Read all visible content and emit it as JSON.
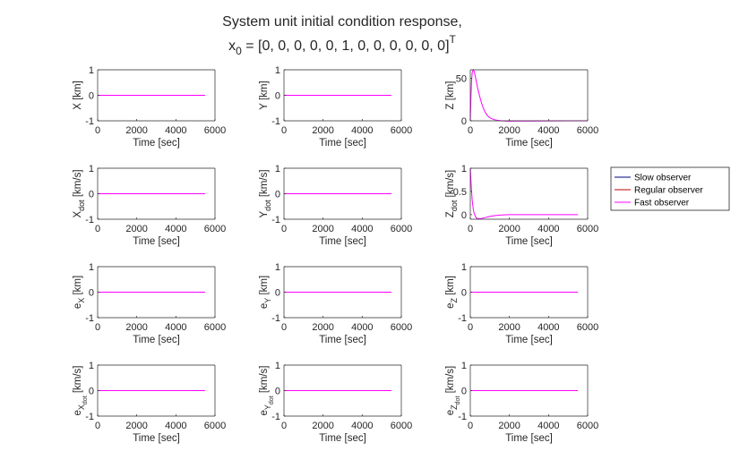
{
  "figure": {
    "title_line1": "System unit initial condition response,",
    "title_line2": "x",
    "title_line2_sub": "0",
    "title_line2_rest": " = [0, 0, 0, 0, 0, 1, 0, 0, 0, 0, 0, 0]",
    "title_line2_sup": "T"
  },
  "legend": {
    "placement": "right",
    "entries": [
      {
        "name": "Slow observer",
        "color": "#00007f"
      },
      {
        "name": "Regular observer",
        "color": "#bf0000"
      },
      {
        "name": "Fast observer",
        "color": "#ff00ff"
      }
    ]
  },
  "chart_data": [
    {
      "type": "line",
      "ylabel_main": "X [km]",
      "ylabel_sub": "",
      "ylabel_tail": "",
      "xlabel": "Time [sec]",
      "xlim": [
        0,
        6000
      ],
      "ylim": [
        -1,
        1
      ],
      "xticks": [
        "0",
        "2000",
        "4000",
        "6000"
      ],
      "yticks": [
        "-1",
        "0",
        "1"
      ],
      "series": [
        {
          "name": "Fast observer",
          "x": [
            0,
            5500
          ],
          "y": [
            0,
            0
          ]
        }
      ]
    },
    {
      "type": "line",
      "ylabel_main": "Y [km]",
      "ylabel_sub": "",
      "ylabel_tail": "",
      "xlabel": "Time [sec]",
      "xlim": [
        0,
        6000
      ],
      "ylim": [
        -1,
        1
      ],
      "xticks": [
        "0",
        "2000",
        "4000",
        "6000"
      ],
      "yticks": [
        "-1",
        "0",
        "1"
      ],
      "series": [
        {
          "name": "Fast observer",
          "x": [
            0,
            5500
          ],
          "y": [
            0,
            0
          ]
        }
      ]
    },
    {
      "type": "line",
      "ylabel_main": "Z [km]",
      "ylabel_sub": "",
      "ylabel_tail": "",
      "xlabel": "Time [sec]",
      "xlim": [
        0,
        6000
      ],
      "ylim": [
        0,
        60
      ],
      "xticks": [
        "0",
        "2000",
        "4000",
        "6000"
      ],
      "yticks": [
        "0",
        "50"
      ],
      "series": [
        {
          "name": "Fast observer",
          "x": [
            0,
            30,
            60,
            100,
            150,
            200,
            250,
            300,
            400,
            500,
            600,
            700,
            800,
            900,
            1000,
            1200,
            1400,
            1600,
            1800,
            2000,
            2500,
            3000,
            4000,
            5000,
            6000
          ],
          "y": [
            0,
            25,
            45,
            57,
            60,
            58,
            53,
            47,
            36,
            27,
            19,
            13,
            8.5,
            5.5,
            3.5,
            1.5,
            0.5,
            0,
            -0.3,
            -0.4,
            -0.3,
            -0.2,
            -0.1,
            0,
            0
          ]
        }
      ]
    },
    {
      "type": "line",
      "ylabel_main": "X",
      "ylabel_sub": "dot",
      "ylabel_tail": " [km/s]",
      "xlabel": "Time [sec]",
      "xlim": [
        0,
        6000
      ],
      "ylim": [
        -1,
        1
      ],
      "xticks": [
        "0",
        "2000",
        "4000",
        "6000"
      ],
      "yticks": [
        "-1",
        "0",
        "1"
      ],
      "series": [
        {
          "name": "Fast observer",
          "x": [
            0,
            5500
          ],
          "y": [
            0,
            0
          ]
        }
      ]
    },
    {
      "type": "line",
      "ylabel_main": "Y",
      "ylabel_sub": "dot",
      "ylabel_tail": " [km/s]",
      "xlabel": "Time [sec]",
      "xlim": [
        0,
        6000
      ],
      "ylim": [
        -1,
        1
      ],
      "xticks": [
        "0",
        "2000",
        "4000",
        "6000"
      ],
      "yticks": [
        "-1",
        "0",
        "1"
      ],
      "series": [
        {
          "name": "Fast observer",
          "x": [
            0,
            5500
          ],
          "y": [
            0,
            0
          ]
        }
      ]
    },
    {
      "type": "line",
      "ylabel_main": "Z",
      "ylabel_sub": "dot",
      "ylabel_tail": " [km/s]",
      "xlabel": "Time [sec]",
      "xlim": [
        0,
        6000
      ],
      "ylim": [
        -0.1,
        1
      ],
      "xticks": [
        "0",
        "2000",
        "4000",
        "6000"
      ],
      "yticks": [
        "0",
        "0.5",
        "1"
      ],
      "series": [
        {
          "name": "Fast observer",
          "x": [
            0,
            50,
            100,
            150,
            200,
            300,
            400,
            500,
            600,
            700,
            800,
            1000,
            1200,
            1500,
            2000,
            2500,
            3000,
            4000,
            5000,
            5500
          ],
          "y": [
            1,
            0.6,
            0.3,
            0.12,
            0.02,
            -0.07,
            -0.09,
            -0.09,
            -0.08,
            -0.07,
            -0.06,
            -0.04,
            -0.025,
            -0.01,
            0,
            0,
            0,
            0,
            0,
            0
          ]
        }
      ]
    },
    {
      "type": "line",
      "ylabel_main": "e",
      "ylabel_sub": "X",
      "ylabel_tail": " [km]",
      "xlabel": "Time [sec]",
      "xlim": [
        0,
        6000
      ],
      "ylim": [
        -1,
        1
      ],
      "xticks": [
        "0",
        "2000",
        "4000",
        "6000"
      ],
      "yticks": [
        "-1",
        "0",
        "1"
      ],
      "series": [
        {
          "name": "Fast observer",
          "x": [
            0,
            5500
          ],
          "y": [
            0,
            0
          ]
        }
      ]
    },
    {
      "type": "line",
      "ylabel_main": "e",
      "ylabel_sub": "Y",
      "ylabel_tail": " [km]",
      "xlabel": "Time [sec]",
      "xlim": [
        0,
        6000
      ],
      "ylim": [
        -1,
        1
      ],
      "xticks": [
        "0",
        "2000",
        "4000",
        "6000"
      ],
      "yticks": [
        "-1",
        "0",
        "1"
      ],
      "series": [
        {
          "name": "Fast observer",
          "x": [
            0,
            5500
          ],
          "y": [
            0,
            0
          ]
        }
      ]
    },
    {
      "type": "line",
      "ylabel_main": "e",
      "ylabel_sub": "Z",
      "ylabel_tail": " [km]",
      "xlabel": "Time [sec]",
      "xlim": [
        0,
        6000
      ],
      "ylim": [
        -1,
        1
      ],
      "xticks": [
        "0",
        "2000",
        "4000",
        "6000"
      ],
      "yticks": [
        "-1",
        "0",
        "1"
      ],
      "series": [
        {
          "name": "Fast observer",
          "x": [
            0,
            5500
          ],
          "y": [
            0,
            0
          ]
        }
      ]
    },
    {
      "type": "line",
      "ylabel_main": "e",
      "ylabel_sub": "X",
      "ylabel_subsub": "dot",
      "ylabel_tail": " [km/s]",
      "xlabel": "Time [sec]",
      "xlim": [
        0,
        6000
      ],
      "ylim": [
        -1,
        1
      ],
      "xticks": [
        "0",
        "2000",
        "4000",
        "6000"
      ],
      "yticks": [
        "-1",
        "0",
        "1"
      ],
      "series": [
        {
          "name": "Fast observer",
          "x": [
            0,
            5500
          ],
          "y": [
            0,
            0
          ]
        }
      ]
    },
    {
      "type": "line",
      "ylabel_main": "e",
      "ylabel_sub": "Y",
      "ylabel_subsub": "dot",
      "ylabel_tail": " [km/s]",
      "xlabel": "Time [sec]",
      "xlim": [
        0,
        6000
      ],
      "ylim": [
        -1,
        1
      ],
      "xticks": [
        "0",
        "2000",
        "4000",
        "6000"
      ],
      "yticks": [
        "-1",
        "0",
        "1"
      ],
      "series": [
        {
          "name": "Fast observer",
          "x": [
            0,
            5500
          ],
          "y": [
            0,
            0
          ]
        }
      ]
    },
    {
      "type": "line",
      "ylabel_main": "e",
      "ylabel_sub": "Z",
      "ylabel_subsub": "dot",
      "ylabel_tail": " [km/s]",
      "xlabel": "Time [sec]",
      "xlim": [
        0,
        6000
      ],
      "ylim": [
        -1,
        1
      ],
      "xticks": [
        "0",
        "2000",
        "4000",
        "6000"
      ],
      "yticks": [
        "-1",
        "0",
        "1"
      ],
      "series": [
        {
          "name": "Fast observer",
          "x": [
            0,
            5500
          ],
          "y": [
            0,
            0
          ]
        }
      ]
    }
  ]
}
